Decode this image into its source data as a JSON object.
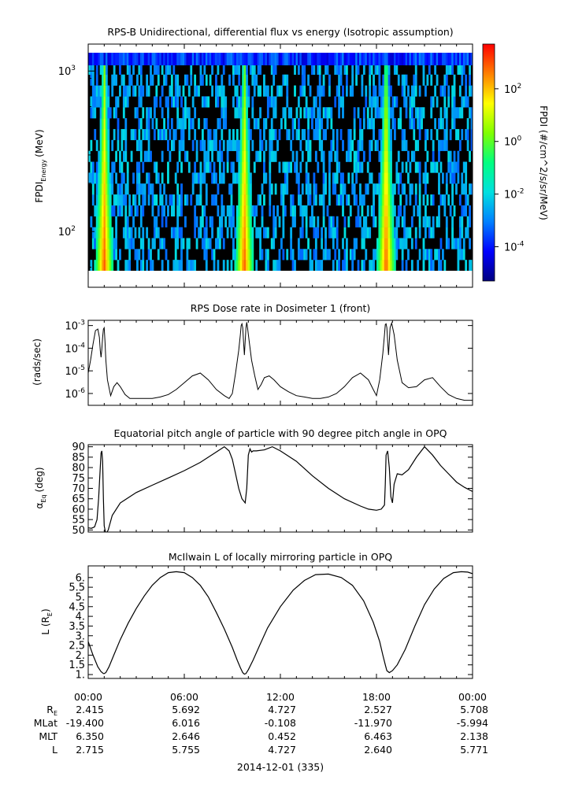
{
  "chart_data": [
    {
      "type": "heatmap",
      "title": "RPS-B  Unidirectional, differential flux vs energy (Isotropic assumption)",
      "ylabel_main": "FPDI",
      "ylabel_sub": "Energy",
      "ylabel_unit": "(MeV)",
      "y_scale": "log",
      "ylim": [
        57,
        1300
      ],
      "y_ticks": [
        {
          "base": "10",
          "exp": "2",
          "value": 100
        },
        {
          "base": "10",
          "exp": "3",
          "value": 1000
        }
      ],
      "energy_range_mev": [
        57,
        1300
      ],
      "energy_bins": 20,
      "bursts_hours": [
        1.0,
        9.75,
        18.6
      ],
      "colorbar": {
        "label": "FPDI (#/cm^2/s/sr/MeV)",
        "scale": "log",
        "range": [
          5e-06,
          5000
        ],
        "ticks": [
          {
            "base": "10",
            "exp": "2",
            "value": 100
          },
          {
            "base": "10",
            "exp": "0",
            "value": 1
          },
          {
            "base": "10",
            "exp": "-2",
            "value": 0.01
          },
          {
            "base": "10",
            "exp": "-4",
            "value": 0.0001
          }
        ],
        "colors": [
          "#000080",
          "#0000ff",
          "#0080ff",
          "#00e0e0",
          "#00ff80",
          "#80ff00",
          "#ffff00",
          "#ff8000",
          "#ff0000"
        ]
      },
      "background_color": "#000000"
    },
    {
      "type": "line",
      "title": "RPS  Dose rate in Dosimeter 1 (front)",
      "ylabel": "(rads/sec)",
      "y_scale": "log",
      "ylim": [
        3e-07,
        0.0017
      ],
      "y_ticks": [
        {
          "base": "10",
          "exp": "-3",
          "value": 0.001
        },
        {
          "base": "10",
          "exp": "-4",
          "value": 0.0001
        },
        {
          "base": "10",
          "exp": "-5",
          "value": 1e-05
        },
        {
          "base": "10",
          "exp": "-6",
          "value": 1e-06
        }
      ],
      "x": [
        0,
        0.15,
        0.3,
        0.45,
        0.6,
        0.7,
        0.75,
        0.8,
        0.85,
        0.9,
        0.95,
        1.0,
        1.05,
        1.1,
        1.2,
        1.4,
        1.6,
        1.8,
        2.0,
        2.3,
        2.6,
        3,
        3.5,
        4,
        4.5,
        5,
        5.5,
        6,
        6.5,
        7,
        7.5,
        8,
        8.5,
        8.8,
        9.0,
        9.2,
        9.4,
        9.5,
        9.55,
        9.6,
        9.65,
        9.7,
        9.75,
        9.8,
        9.85,
        9.9,
        9.95,
        10.05,
        10.2,
        10.4,
        10.6,
        10.8,
        11,
        11.3,
        11.6,
        12,
        12.5,
        13,
        13.5,
        14,
        14.5,
        15,
        15.5,
        16,
        16.5,
        17,
        17.5,
        17.8,
        18.0,
        18.2,
        18.4,
        18.5,
        18.55,
        18.6,
        18.65,
        18.7,
        18.75,
        18.8,
        18.85,
        18.95,
        19.1,
        19.3,
        19.6,
        20,
        20.5,
        21,
        21.5,
        22,
        22.5,
        23,
        23.5,
        24
      ],
      "y": [
        8e-06,
        3e-05,
        0.00015,
        0.0006,
        0.0007,
        0.0003,
        8e-05,
        4e-05,
        9e-05,
        0.0003,
        0.0007,
        0.0008,
        0.0002,
        3e-05,
        4e-06,
        8e-07,
        2e-06,
        3e-06,
        2e-06,
        9e-07,
        6e-07,
        6e-07,
        6e-07,
        6e-07,
        7e-07,
        9e-07,
        1.5e-06,
        3e-06,
        6e-06,
        8e-06,
        4e-06,
        1.5e-06,
        8e-07,
        6e-07,
        1e-06,
        8e-06,
        8e-05,
        0.0004,
        0.001,
        0.0012,
        0.0008,
        0.0002,
        5e-05,
        0.0002,
        0.0008,
        0.0014,
        0.0008,
        0.0002,
        3e-05,
        6e-06,
        1.5e-06,
        2.5e-06,
        5e-06,
        6e-06,
        4e-06,
        2e-06,
        1.2e-06,
        8e-07,
        7e-07,
        6e-07,
        6e-07,
        7e-07,
        1e-06,
        2e-06,
        5e-06,
        8e-06,
        4e-06,
        1.5e-06,
        8e-07,
        4e-06,
        6e-05,
        0.0004,
        0.0011,
        0.0012,
        0.0008,
        0.0002,
        5e-05,
        0.0002,
        0.0008,
        0.0013,
        0.0004,
        3e-05,
        3e-06,
        1.8e-06,
        2e-06,
        4e-06,
        5e-06,
        2e-06,
        9e-07,
        6e-07,
        5e-07,
        5e-07
      ]
    },
    {
      "type": "line",
      "title": "Equatorial pitch angle of particle with 90 degree pitch angle in OPQ",
      "ylabel_main": "α",
      "ylabel_sub": "Eq",
      "ylabel_unit": "(deg)",
      "ylim": [
        49,
        91
      ],
      "y_ticks": [
        50,
        55,
        60,
        65,
        70,
        75,
        80,
        85,
        90
      ],
      "x": [
        0,
        0.2,
        0.4,
        0.55,
        0.65,
        0.75,
        0.8,
        0.85,
        0.9,
        0.95,
        1.0,
        1.1,
        1.25,
        1.5,
        2,
        3,
        4,
        5,
        6,
        7,
        8,
        8.5,
        8.8,
        9.0,
        9.2,
        9.4,
        9.6,
        9.8,
        9.9,
        10.0,
        10.1,
        10.2,
        10.3,
        10.5,
        11,
        11.5,
        12,
        13,
        14,
        15,
        16,
        17,
        17.5,
        18,
        18.3,
        18.5,
        18.55,
        18.6,
        18.7,
        18.8,
        18.9,
        19.0,
        19.1,
        19.3,
        19.6,
        20,
        20.5,
        21,
        21.5,
        22,
        22.5,
        23,
        23.5,
        24
      ],
      "y": [
        51,
        50.8,
        51.5,
        55,
        65,
        80,
        87,
        88,
        83,
        65,
        52,
        48,
        50,
        57,
        63,
        68,
        71.5,
        75,
        78.5,
        82.5,
        87.5,
        90,
        88,
        84,
        77,
        70,
        65,
        63,
        70,
        86,
        89,
        87.5,
        88,
        88,
        88.5,
        90,
        88,
        83,
        76,
        70,
        65,
        61.5,
        60,
        59.5,
        60,
        62,
        72,
        86,
        88,
        80,
        66,
        63,
        72,
        77,
        76.5,
        79,
        85,
        90,
        86,
        81,
        77,
        73,
        70.5,
        68.5
      ]
    },
    {
      "type": "line",
      "title": "McIlwain L of locally mirroring particle in OPQ",
      "ylabel_main": "L (R",
      "ylabel_sub": "E",
      "ylabel_unit": ")",
      "ylim": [
        0.8,
        6.6
      ],
      "y_ticks": [
        1,
        1.5,
        2,
        2.5,
        3,
        3.5,
        4,
        4.5,
        5,
        5.5,
        6
      ],
      "y_tick_labels": [
        "1.",
        "1.5",
        "2.",
        "2.5",
        "3.",
        "3.5",
        "4.",
        "4.5",
        "5.",
        "5.5",
        "6."
      ],
      "x": [
        0,
        0.3,
        0.6,
        0.8,
        0.95,
        1.0,
        1.1,
        1.3,
        1.6,
        2,
        2.5,
        3,
        3.5,
        4,
        4.5,
        5,
        5.5,
        6,
        6.5,
        7,
        7.5,
        8,
        8.5,
        9,
        9.3,
        9.5,
        9.65,
        9.75,
        9.85,
        10.0,
        10.3,
        10.7,
        11.2,
        12,
        12.8,
        13.5,
        14.2,
        15,
        15.8,
        16.5,
        17.2,
        17.8,
        18.2,
        18.4,
        18.55,
        18.65,
        18.8,
        19.0,
        19.3,
        19.8,
        20.4,
        21,
        21.6,
        22.2,
        22.8,
        23.3,
        23.7,
        24
      ],
      "y": [
        2.7,
        2.0,
        1.4,
        1.15,
        1.05,
        1.05,
        1.1,
        1.4,
        2.0,
        2.8,
        3.65,
        4.4,
        5.05,
        5.6,
        6.0,
        6.25,
        6.3,
        6.25,
        6.0,
        5.6,
        5.0,
        4.2,
        3.35,
        2.4,
        1.75,
        1.35,
        1.1,
        1.02,
        1.05,
        1.25,
        1.75,
        2.5,
        3.4,
        4.5,
        5.35,
        5.85,
        6.15,
        6.18,
        6.0,
        5.6,
        4.8,
        3.7,
        2.7,
        2.0,
        1.5,
        1.2,
        1.1,
        1.2,
        1.5,
        2.3,
        3.5,
        4.6,
        5.4,
        5.95,
        6.25,
        6.3,
        6.28,
        6.2
      ]
    }
  ],
  "x_axis": {
    "range_hours": [
      0,
      24
    ],
    "tick_hours": [
      0,
      6,
      12,
      18,
      24
    ],
    "time_labels": [
      "00:00",
      "06:00",
      "12:00",
      "18:00",
      "00:00"
    ],
    "rows": [
      {
        "label": "R",
        "label_sub": "E",
        "values": [
          "2.415",
          "5.692",
          "4.727",
          "2.527",
          "5.708"
        ]
      },
      {
        "label": "MLat",
        "label_sub": "",
        "values": [
          "-19.400",
          "6.016",
          "-0.108",
          "-11.970",
          "-5.994"
        ]
      },
      {
        "label": "MLT",
        "label_sub": "",
        "values": [
          "6.350",
          "2.646",
          "0.452",
          "6.463",
          "2.138"
        ]
      },
      {
        "label": "L",
        "label_sub": "",
        "values": [
          "2.715",
          "5.755",
          "4.727",
          "2.640",
          "5.771"
        ]
      }
    ],
    "date_label": "2014-12-01 (335)"
  }
}
